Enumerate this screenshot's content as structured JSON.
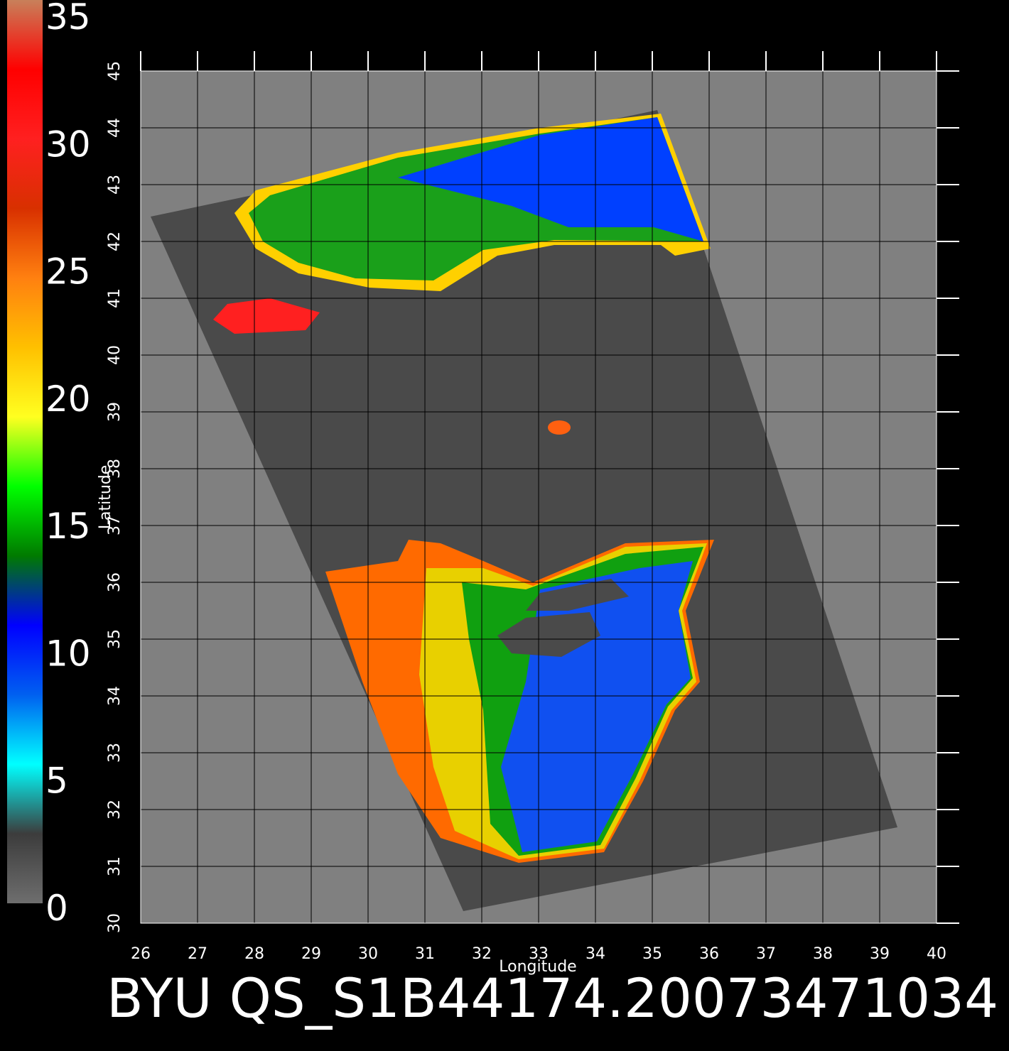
{
  "colorbar": {
    "lim": [
      0,
      35
    ],
    "ticks": [
      0,
      5,
      10,
      15,
      20,
      25,
      30,
      35
    ],
    "colors": [
      "#6e6e6e",
      "#3c3c3c",
      "#00ffff",
      "#0060f0",
      "#0000ff",
      "#007a00",
      "#00ff00",
      "#ffff20",
      "#ffc000",
      "#ff8010",
      "#d83000",
      "#ff2020",
      "#ff0000",
      "#c8805a"
    ]
  },
  "map": {
    "xlabel": "Longitude",
    "ylabel": "Latitude",
    "xlim": [
      26,
      40
    ],
    "ylim": [
      30,
      45
    ],
    "xticks": [
      26,
      27,
      28,
      29,
      30,
      31,
      32,
      33,
      34,
      35,
      36,
      37,
      38,
      39,
      40
    ],
    "yticks": [
      30,
      31,
      32,
      33,
      34,
      35,
      36,
      37,
      38,
      39,
      40,
      41,
      42,
      43,
      44,
      45
    ],
    "grid": true
  },
  "caption": "BYU QS_S1B44174.20073471034"
}
